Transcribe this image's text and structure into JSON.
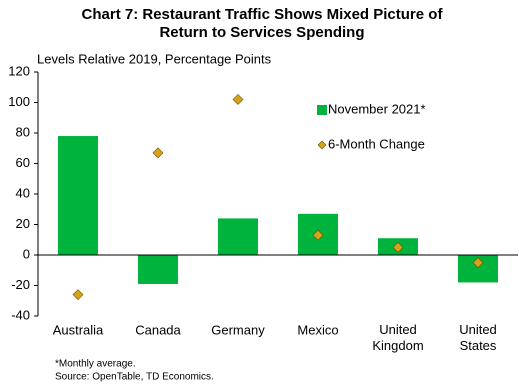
{
  "chart_data": {
    "type": "bar",
    "title": "Chart 7: Restaurant Traffic Shows Mixed Picture of\nReturn to Services Spending",
    "y_label": "Levels Relative 2019, Percentage Points",
    "categories": [
      "Australia",
      "Canada",
      "Germany",
      "Mexico",
      "United\nKingdom",
      "United\nStates"
    ],
    "series": [
      {
        "name": "November 2021*",
        "type": "bar",
        "color": "#00b33c",
        "values": [
          78,
          -19,
          24,
          27,
          11,
          -18
        ]
      },
      {
        "name": "6-Month Change",
        "type": "scatter",
        "color": "#d4a31a",
        "values": [
          -26,
          67,
          102,
          13,
          5,
          -5
        ]
      }
    ],
    "ylim": [
      -40,
      120
    ],
    "yticks": [
      -40,
      -20,
      0,
      20,
      40,
      60,
      80,
      100,
      120
    ],
    "grid": false,
    "legend": "upper right",
    "footnotes": [
      "*Monthly average.",
      "Source: OpenTable, TD Economics."
    ]
  }
}
